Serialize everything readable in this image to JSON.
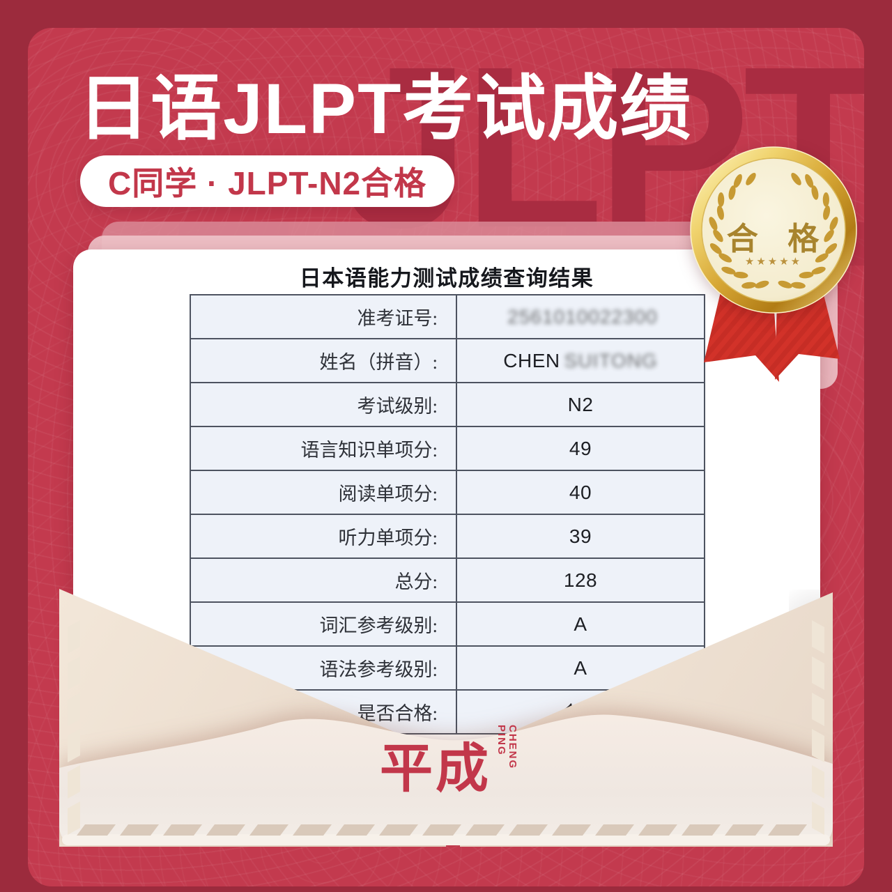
{
  "colors": {
    "frame": "#9c2b3d",
    "panel_red": "#c33a4e",
    "accent_red": "#c2374a",
    "gold": "#c79a33",
    "medal_cream": "#f6efd5",
    "envelope_beige": "#f2e7de",
    "table_cell_blue": "#eef2f9",
    "table_border": "#4d5360"
  },
  "header": {
    "title": "日语JLPT考试成绩",
    "badge": "C同学 · JLPT-N2合格",
    "watermark": "JLPT"
  },
  "medal": {
    "label": "合 格",
    "stars": "★★★★★"
  },
  "result_card": {
    "title": "日本语能力测试成绩查询结果",
    "rows": [
      {
        "label": "准考证号:",
        "parts": [
          {
            "text": "2561010022300",
            "blur": true
          }
        ]
      },
      {
        "label": "姓名（拼音）:",
        "parts": [
          {
            "text": "CHEN "
          },
          {
            "text": "SUITONG",
            "blur": true
          }
        ]
      },
      {
        "label": "考试级别:",
        "parts": [
          {
            "text": "N2"
          }
        ]
      },
      {
        "label": "语言知识单项分:",
        "parts": [
          {
            "text": "49"
          }
        ]
      },
      {
        "label": "阅读单项分:",
        "parts": [
          {
            "text": "40"
          }
        ]
      },
      {
        "label": "听力单项分:",
        "parts": [
          {
            "text": "39"
          }
        ]
      },
      {
        "label": "总分:",
        "parts": [
          {
            "text": "128"
          }
        ]
      },
      {
        "label": "词汇参考级别:",
        "parts": [
          {
            "text": "A"
          }
        ]
      },
      {
        "label": "语法参考级别:",
        "parts": [
          {
            "text": "A"
          }
        ]
      },
      {
        "label": "是否合格:",
        "parts": [
          {
            "text": "合格"
          }
        ]
      }
    ]
  },
  "envelope": {
    "logo_cn": "平成",
    "logo_en_line1": "CHENG",
    "logo_en_line2": "PING"
  }
}
